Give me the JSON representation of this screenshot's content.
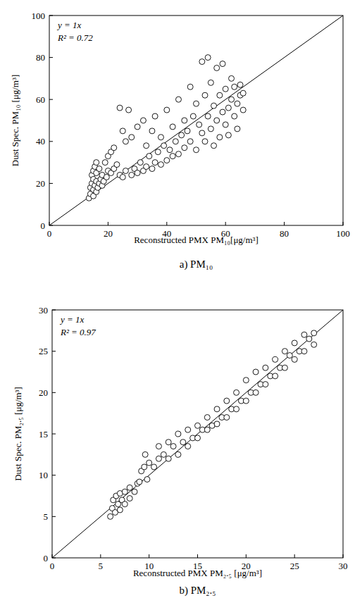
{
  "chart_data": [
    {
      "type": "scatter",
      "title": "a) PM₁₀",
      "x_label": "Reconstructed PMX PM₁₀[μg/m³]",
      "y_label": "Dust Spec. PM₁₀ [μg/m³]",
      "annotations": [
        "y = 1x",
        "R² = 0.72"
      ],
      "fit_line": {
        "slope": 1,
        "intercept": 0
      },
      "marker": "circle",
      "color": "#000000",
      "grid": false,
      "xlim": [
        0,
        100
      ],
      "ylim": [
        0,
        100
      ],
      "xticks": [
        0,
        20,
        40,
        60,
        80,
        100
      ],
      "yticks": [
        0,
        20,
        40,
        60,
        80,
        100
      ],
      "x": [
        13.5,
        14,
        14,
        14.5,
        14.5,
        15,
        15,
        15,
        15,
        15.5,
        15.5,
        16,
        16,
        16,
        16,
        16.5,
        17,
        17,
        17.5,
        18,
        18,
        18.5,
        19,
        19.5,
        20,
        20,
        21,
        21,
        22,
        22,
        23,
        24,
        24,
        25,
        25,
        26,
        26,
        27,
        28,
        28,
        29,
        30,
        30,
        31,
        32,
        32,
        33,
        33,
        34,
        35,
        35,
        36,
        36,
        37,
        38,
        38,
        39,
        40,
        40,
        41,
        42,
        42,
        43,
        44,
        44,
        45,
        46,
        46,
        47,
        48,
        48,
        49,
        50,
        50,
        51,
        52,
        52,
        53,
        53,
        54,
        54,
        55,
        55,
        56,
        56,
        57,
        57,
        58,
        58,
        59,
        59,
        60,
        60,
        61,
        61,
        62,
        62,
        63,
        63,
        64,
        64,
        65,
        65,
        66,
        66
      ],
      "values": [
        13,
        15,
        18,
        20,
        24,
        14,
        17,
        22,
        26,
        19,
        28,
        16,
        21,
        25,
        30,
        18,
        20,
        27,
        22,
        19,
        24,
        21,
        30,
        23,
        26,
        33,
        25,
        35,
        27,
        37,
        29,
        24,
        56,
        23,
        45,
        26,
        40,
        55,
        24,
        42,
        27,
        25,
        47,
        30,
        26,
        50,
        28,
        38,
        33,
        27,
        45,
        30,
        52,
        35,
        29,
        42,
        38,
        31,
        55,
        36,
        33,
        47,
        40,
        34,
        60,
        43,
        37,
        50,
        45,
        40,
        66,
        52,
        36,
        58,
        48,
        78,
        44,
        40,
        62,
        80,
        52,
        46,
        68,
        38,
        57,
        50,
        75,
        42,
        62,
        54,
        77,
        48,
        65,
        56,
        43,
        60,
        70,
        52,
        66,
        58,
        46,
        62,
        67,
        55,
        63
      ]
    },
    {
      "type": "scatter",
      "title": "b) PM₂.₅",
      "x_label": "Reconstructed PMX PM₂.₅ [μg/m³]",
      "y_label": "Dust Spec. PM₂.₅ [μg/m³]",
      "annotations": [
        "y = 1x",
        "R² = 0.97"
      ],
      "fit_line": {
        "slope": 1,
        "intercept": 0
      },
      "marker": "circle",
      "color": "#000000",
      "grid": false,
      "xlim": [
        0,
        30
      ],
      "ylim": [
        0,
        30
      ],
      "xticks": [
        0,
        5,
        10,
        15,
        20,
        25,
        30
      ],
      "yticks": [
        0,
        5,
        10,
        15,
        20,
        25,
        30
      ],
      "x": [
        6,
        6.2,
        6.3,
        6.5,
        6.6,
        6.8,
        7,
        7,
        7.2,
        7.5,
        7.5,
        8,
        8,
        8.5,
        8.8,
        9,
        9.2,
        9.5,
        9.6,
        9.8,
        10,
        10.5,
        11,
        11,
        11.5,
        12,
        12,
        12.5,
        13,
        13,
        13.5,
        14,
        14,
        14.5,
        15,
        15,
        15.5,
        16,
        16,
        16.5,
        17,
        17,
        17.5,
        18,
        18,
        18.5,
        19,
        19,
        19.5,
        20,
        20,
        20.5,
        21,
        21,
        21.5,
        22,
        22,
        22.5,
        23,
        23,
        23.5,
        24,
        24,
        24.5,
        25,
        25,
        25.5,
        26,
        26,
        26.5,
        27,
        27
      ],
      "values": [
        5,
        6,
        7,
        5.5,
        7.5,
        6.5,
        7.8,
        5.8,
        7,
        8,
        6.5,
        7.2,
        8.5,
        8,
        9,
        9.2,
        10.5,
        11,
        12.5,
        9.5,
        11.5,
        11,
        12,
        13.5,
        12.5,
        14,
        12,
        13.5,
        15,
        12.5,
        14,
        15.5,
        13.5,
        14.5,
        16,
        14.5,
        15.5,
        17,
        15.5,
        16,
        18,
        16.2,
        17,
        19,
        17,
        18,
        20,
        18,
        19,
        21.5,
        19,
        20,
        22.5,
        20,
        21,
        23,
        21,
        22,
        24,
        22,
        23,
        25,
        23,
        24.5,
        26,
        24,
        25,
        27,
        25,
        26.5,
        27.2,
        25.8
      ]
    }
  ]
}
